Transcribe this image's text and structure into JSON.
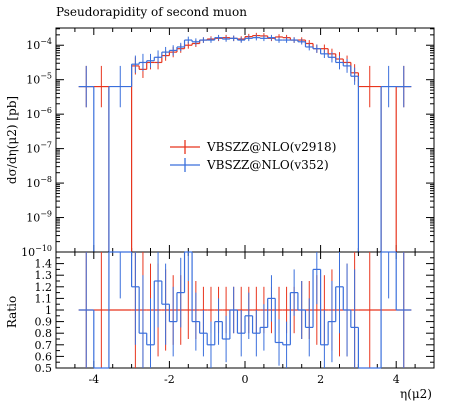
{
  "chart_data": {
    "type": "line",
    "title": "Pseudorapidity of second muon",
    "xlabel": "η(μ2)",
    "ylabel_top": "dσ/dη(μ2) [pb]",
    "ylabel_bottom": "Ratio",
    "xlim": [
      -5,
      5
    ],
    "ylim_top_log10": [
      -10,
      -3.5
    ],
    "ylim_bottom": [
      0.5,
      1.5
    ],
    "x_ticks": [
      -4,
      -2,
      0,
      2,
      4
    ],
    "x_tick_labels": [
      "-4",
      "-2",
      "0",
      "2",
      "4"
    ],
    "y_ticks_top": [
      -10,
      -9,
      -8,
      -7,
      -6,
      -5,
      -4
    ],
    "y_tick_labels_top": [
      "10^{-10}",
      "10^{-9}",
      "10^{-8}",
      "10^{-7}",
      "10^{-6}",
      "10^{-5}",
      "10^{-4}"
    ],
    "y_ticks_bottom": [
      0.5,
      0.6,
      0.7,
      0.8,
      0.9,
      1.0,
      1.1,
      1.2,
      1.3,
      1.4
    ],
    "y_tick_labels_bottom": [
      "0.5",
      "0.6",
      "0.7",
      "0.8",
      "0.9",
      "1",
      "1.1",
      "1.2",
      "1.3",
      "1.4"
    ],
    "bin_edges": [
      -4.4,
      -4.0,
      -3.6,
      -3.0,
      -2.8,
      -2.6,
      -2.4,
      -2.2,
      -2.0,
      -1.8,
      -1.6,
      -1.4,
      -1.2,
      -1.0,
      -0.8,
      -0.6,
      -0.4,
      -0.2,
      0.0,
      0.2,
      0.4,
      0.6,
      0.8,
      1.0,
      1.2,
      1.4,
      1.6,
      1.8,
      2.0,
      2.2,
      2.4,
      2.6,
      2.8,
      3.0,
      3.6,
      4.0,
      4.4
    ],
    "series": [
      {
        "name": "VBSZZ@NLO(v2918)",
        "color": "#e8351e",
        "log10_values": [
          -5.2,
          -5.2,
          -10,
          -4.6,
          -4.7,
          -4.5,
          -4.5,
          -4.3,
          -4.2,
          -4.1,
          -4.0,
          -3.95,
          -3.85,
          -3.82,
          -3.8,
          -3.78,
          -3.8,
          -3.82,
          -3.75,
          -3.72,
          -3.73,
          -3.8,
          -3.76,
          -3.78,
          -3.85,
          -3.85,
          -3.95,
          -4.1,
          -4.1,
          -4.25,
          -4.4,
          -4.5,
          -4.8,
          -5.2,
          -10,
          -5.2
        ],
        "log10_err": [
          0.6,
          0.6,
          0,
          0.25,
          0.25,
          0.2,
          0.2,
          0.15,
          0.15,
          0.12,
          0.1,
          0.1,
          0.08,
          0.08,
          0.08,
          0.08,
          0.08,
          0.08,
          0.08,
          0.08,
          0.08,
          0.08,
          0.08,
          0.08,
          0.08,
          0.08,
          0.1,
          0.12,
          0.12,
          0.15,
          0.2,
          0.2,
          0.25,
          0.6,
          0,
          0.6
        ],
        "ratio": [
          1.0,
          1.0,
          1.0,
          1.0,
          1.0,
          1.0,
          1.0,
          1.0,
          1.0,
          1.0,
          1.0,
          1.0,
          1.0,
          1.0,
          1.0,
          1.0,
          1.0,
          1.0,
          1.0,
          1.0,
          1.0,
          1.0,
          1.0,
          1.0,
          1.0,
          1.0,
          1.0,
          1.0,
          1.0,
          1.0,
          1.0,
          1.0,
          1.0,
          1.0,
          1.0,
          1.0
        ],
        "ratio_err": [
          0.9,
          0.9,
          0,
          0.5,
          0.5,
          0.4,
          0.4,
          0.35,
          0.3,
          0.3,
          0.25,
          0.25,
          0.2,
          0.2,
          0.2,
          0.2,
          0.2,
          0.2,
          0.2,
          0.2,
          0.2,
          0.2,
          0.2,
          0.2,
          0.2,
          0.25,
          0.25,
          0.3,
          0.3,
          0.35,
          0.4,
          0.4,
          0.5,
          0.9,
          0,
          0.9
        ]
      },
      {
        "name": "VBSZZ@NLO(v352)",
        "color": "#3a6fdc",
        "log10_values": [
          -5.2,
          -10,
          -5.2,
          -4.55,
          -4.5,
          -4.45,
          -4.35,
          -4.2,
          -4.15,
          -4.05,
          -3.85,
          -3.9,
          -3.85,
          -3.85,
          -3.78,
          -3.82,
          -3.8,
          -3.85,
          -3.8,
          -3.78,
          -3.8,
          -3.78,
          -3.85,
          -3.85,
          -3.85,
          -3.9,
          -4.05,
          -4.1,
          -4.25,
          -4.35,
          -4.5,
          -4.6,
          -4.9,
          -10,
          -5.2,
          -5.2
        ],
        "log10_err": [
          0.6,
          0,
          0.6,
          0.25,
          0.25,
          0.2,
          0.2,
          0.15,
          0.15,
          0.12,
          0.1,
          0.1,
          0.08,
          0.08,
          0.08,
          0.08,
          0.08,
          0.08,
          0.08,
          0.08,
          0.08,
          0.08,
          0.08,
          0.08,
          0.08,
          0.08,
          0.1,
          0.12,
          0.12,
          0.15,
          0.2,
          0.2,
          0.25,
          0,
          0.6,
          0.6
        ],
        "ratio": [
          1.0,
          0.5,
          2.0,
          1.2,
          0.8,
          0.7,
          1.25,
          1.05,
          0.9,
          1.15,
          1.5,
          0.9,
          0.8,
          0.7,
          0.9,
          0.75,
          1.0,
          0.8,
          0.95,
          0.8,
          0.85,
          1.1,
          0.72,
          0.7,
          1.15,
          1.0,
          0.85,
          1.35,
          0.7,
          0.9,
          1.2,
          1.0,
          0.85,
          0.5,
          2.0,
          1.0
        ],
        "ratio_err": [
          0.9,
          0,
          0.9,
          0.5,
          0.5,
          0.4,
          0.4,
          0.35,
          0.3,
          0.3,
          0.25,
          0.25,
          0.2,
          0.2,
          0.2,
          0.2,
          0.2,
          0.2,
          0.2,
          0.2,
          0.2,
          0.2,
          0.2,
          0.2,
          0.2,
          0.25,
          0.25,
          0.3,
          0.3,
          0.35,
          0.4,
          0.4,
          0.5,
          0,
          0.9,
          0.9
        ]
      }
    ],
    "legend": [
      "VBSZZ@NLO(v2918)",
      "VBSZZ@NLO(v352)"
    ],
    "legend_placement": "center"
  }
}
